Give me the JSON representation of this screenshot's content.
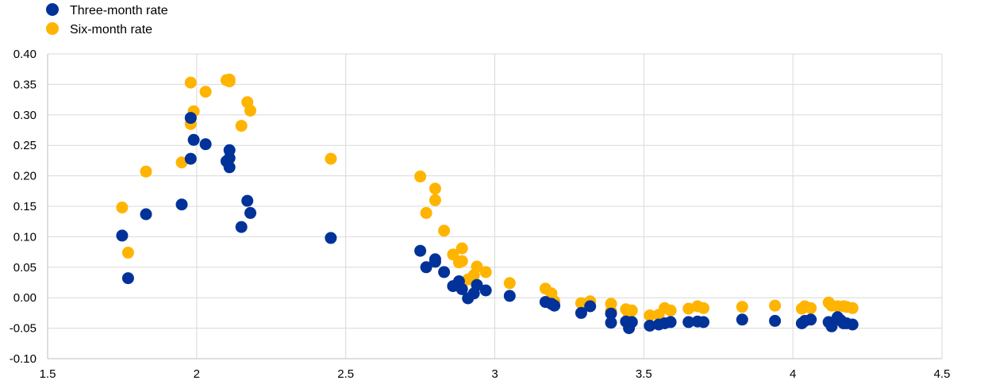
{
  "chart_data": {
    "type": "scatter",
    "title": "",
    "xlabel": "",
    "ylabel": "",
    "xlim": [
      1.5,
      4.5
    ],
    "ylim": [
      -0.1,
      0.4
    ],
    "x_ticks": [
      "1.5",
      "2",
      "2.5",
      "3",
      "3.5",
      "4",
      "4.5"
    ],
    "x_tick_values": [
      1.5,
      2,
      2.5,
      3,
      3.5,
      4,
      4.5
    ],
    "y_ticks": [
      "0.40",
      "0.35",
      "0.30",
      "0.25",
      "0.20",
      "0.15",
      "0.10",
      "0.05",
      "0.00",
      "-0.05",
      "-0.10"
    ],
    "y_tick_values": [
      0.4,
      0.35,
      0.3,
      0.25,
      0.2,
      0.15,
      0.1,
      0.05,
      0.0,
      -0.05,
      -0.1
    ],
    "grid": true,
    "legend_position": "top-left",
    "series": [
      {
        "name": "Three-month rate",
        "color": "#003299",
        "points": [
          [
            1.75,
            0.102
          ],
          [
            1.77,
            0.032
          ],
          [
            1.83,
            0.137
          ],
          [
            1.95,
            0.153
          ],
          [
            1.98,
            0.295
          ],
          [
            1.98,
            0.228
          ],
          [
            1.99,
            0.259
          ],
          [
            2.03,
            0.252
          ],
          [
            2.1,
            0.224
          ],
          [
            2.11,
            0.214
          ],
          [
            2.11,
            0.242
          ],
          [
            2.11,
            0.229
          ],
          [
            2.15,
            0.116
          ],
          [
            2.17,
            0.159
          ],
          [
            2.18,
            0.139
          ],
          [
            2.45,
            0.098
          ],
          [
            2.75,
            0.077
          ],
          [
            2.77,
            0.05
          ],
          [
            2.8,
            0.063
          ],
          [
            2.8,
            0.059
          ],
          [
            2.83,
            0.042
          ],
          [
            2.86,
            0.019
          ],
          [
            2.88,
            0.027
          ],
          [
            2.89,
            0.014
          ],
          [
            2.91,
            -0.001
          ],
          [
            2.93,
            0.007
          ],
          [
            2.94,
            0.021
          ],
          [
            2.97,
            0.012
          ],
          [
            3.05,
            0.003
          ],
          [
            3.17,
            -0.007
          ],
          [
            3.19,
            -0.01
          ],
          [
            3.2,
            -0.013
          ],
          [
            3.29,
            -0.025
          ],
          [
            3.32,
            -0.014
          ],
          [
            3.39,
            -0.041
          ],
          [
            3.39,
            -0.026
          ],
          [
            3.44,
            -0.039
          ],
          [
            3.45,
            -0.05
          ],
          [
            3.46,
            -0.04
          ],
          [
            3.52,
            -0.046
          ],
          [
            3.55,
            -0.044
          ],
          [
            3.57,
            -0.042
          ],
          [
            3.59,
            -0.04
          ],
          [
            3.65,
            -0.04
          ],
          [
            3.68,
            -0.039
          ],
          [
            3.7,
            -0.04
          ],
          [
            3.83,
            -0.036
          ],
          [
            3.94,
            -0.038
          ],
          [
            4.03,
            -0.042
          ],
          [
            4.04,
            -0.038
          ],
          [
            4.06,
            -0.036
          ],
          [
            4.12,
            -0.04
          ],
          [
            4.13,
            -0.047
          ],
          [
            4.15,
            -0.032
          ],
          [
            4.16,
            -0.037
          ],
          [
            4.17,
            -0.042
          ],
          [
            4.18,
            -0.042
          ],
          [
            4.2,
            -0.044
          ]
        ]
      },
      {
        "name": "Six-month rate",
        "color": "#FFB400",
        "points": [
          [
            1.75,
            0.148
          ],
          [
            1.77,
            0.074
          ],
          [
            1.83,
            0.207
          ],
          [
            1.95,
            0.222
          ],
          [
            1.98,
            0.353
          ],
          [
            1.98,
            0.285
          ],
          [
            1.99,
            0.306
          ],
          [
            2.03,
            0.338
          ],
          [
            2.1,
            0.357
          ],
          [
            2.11,
            0.355
          ],
          [
            2.11,
            0.358
          ],
          [
            2.15,
            0.282
          ],
          [
            2.17,
            0.321
          ],
          [
            2.18,
            0.307
          ],
          [
            2.45,
            0.228
          ],
          [
            2.75,
            0.199
          ],
          [
            2.77,
            0.139
          ],
          [
            2.8,
            0.179
          ],
          [
            2.8,
            0.16
          ],
          [
            2.83,
            0.11
          ],
          [
            2.86,
            0.071
          ],
          [
            2.88,
            0.058
          ],
          [
            2.89,
            0.081
          ],
          [
            2.89,
            0.06
          ],
          [
            2.91,
            0.03
          ],
          [
            2.93,
            0.037
          ],
          [
            2.94,
            0.051
          ],
          [
            2.97,
            0.042
          ],
          [
            3.05,
            0.024
          ],
          [
            3.17,
            0.015
          ],
          [
            3.19,
            0.007
          ],
          [
            3.2,
            -0.006
          ],
          [
            3.29,
            -0.009
          ],
          [
            3.32,
            -0.006
          ],
          [
            3.39,
            -0.01
          ],
          [
            3.39,
            -0.022
          ],
          [
            3.44,
            -0.019
          ],
          [
            3.45,
            -0.027
          ],
          [
            3.46,
            -0.021
          ],
          [
            3.52,
            -0.029
          ],
          [
            3.55,
            -0.028
          ],
          [
            3.57,
            -0.017
          ],
          [
            3.59,
            -0.021
          ],
          [
            3.65,
            -0.018
          ],
          [
            3.68,
            -0.014
          ],
          [
            3.7,
            -0.017
          ],
          [
            3.83,
            -0.015
          ],
          [
            3.94,
            -0.013
          ],
          [
            4.03,
            -0.018
          ],
          [
            4.04,
            -0.014
          ],
          [
            4.06,
            -0.017
          ],
          [
            4.12,
            -0.008
          ],
          [
            4.13,
            -0.013
          ],
          [
            4.15,
            -0.014
          ],
          [
            4.17,
            -0.014
          ],
          [
            4.18,
            -0.015
          ],
          [
            4.2,
            -0.017
          ]
        ]
      }
    ]
  }
}
